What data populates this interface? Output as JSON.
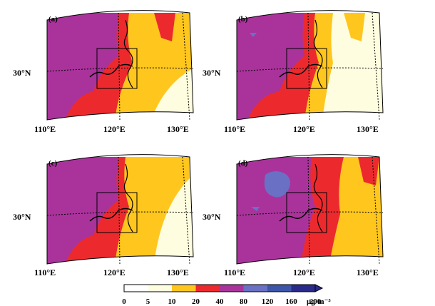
{
  "figure": {
    "panels": [
      {
        "label": "(a)"
      },
      {
        "label": "(b)"
      },
      {
        "label": "(c)"
      },
      {
        "label": "(d)"
      }
    ],
    "axis": {
      "lat_label": "30°N",
      "lon_labels": [
        "110°E",
        "120°E",
        "130°E"
      ]
    },
    "colorbar": {
      "levels": [
        "0",
        "5",
        "10",
        "20",
        "40",
        "80",
        "120",
        "160",
        "200"
      ],
      "unit": "μg·m⁻³",
      "colors": [
        "#ffffff",
        "#fffde0",
        "#ffc61e",
        "#ec2a2e",
        "#a9339b",
        "#6a70c4",
        "#3d56a9",
        "#2a2a8a"
      ]
    }
  }
}
